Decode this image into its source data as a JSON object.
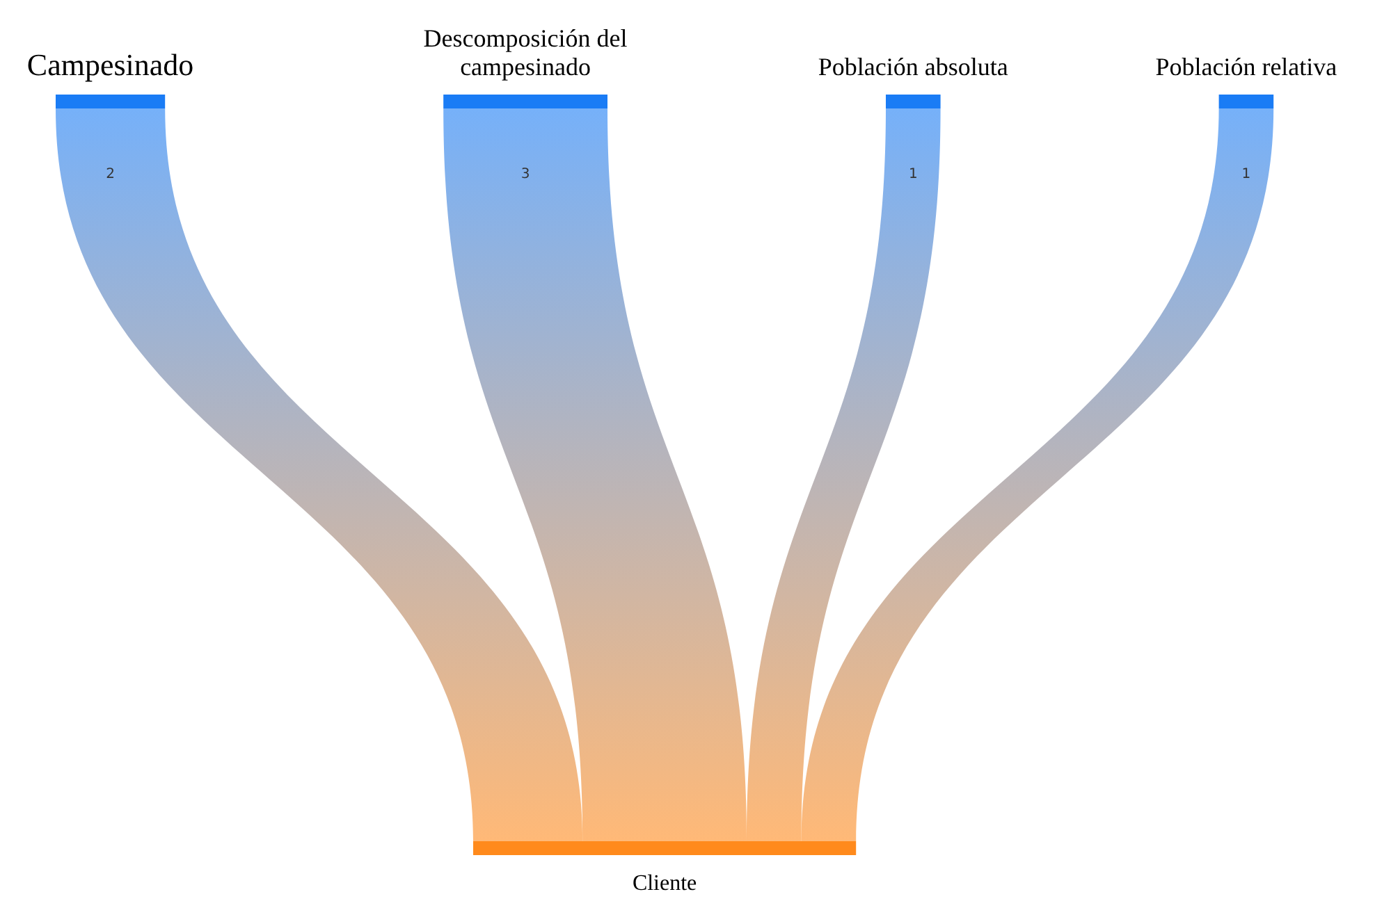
{
  "chart_data": {
    "type": "other",
    "categories": [
      "Campesinado",
      "Descomposición del campesinado",
      "Población absoluta",
      "Población relativa"
    ],
    "values": [
      2,
      3,
      1,
      1
    ],
    "data_labels": true,
    "color": "#1a7cf5",
    "annotations": [
      "Cliente"
    ]
  }
}
